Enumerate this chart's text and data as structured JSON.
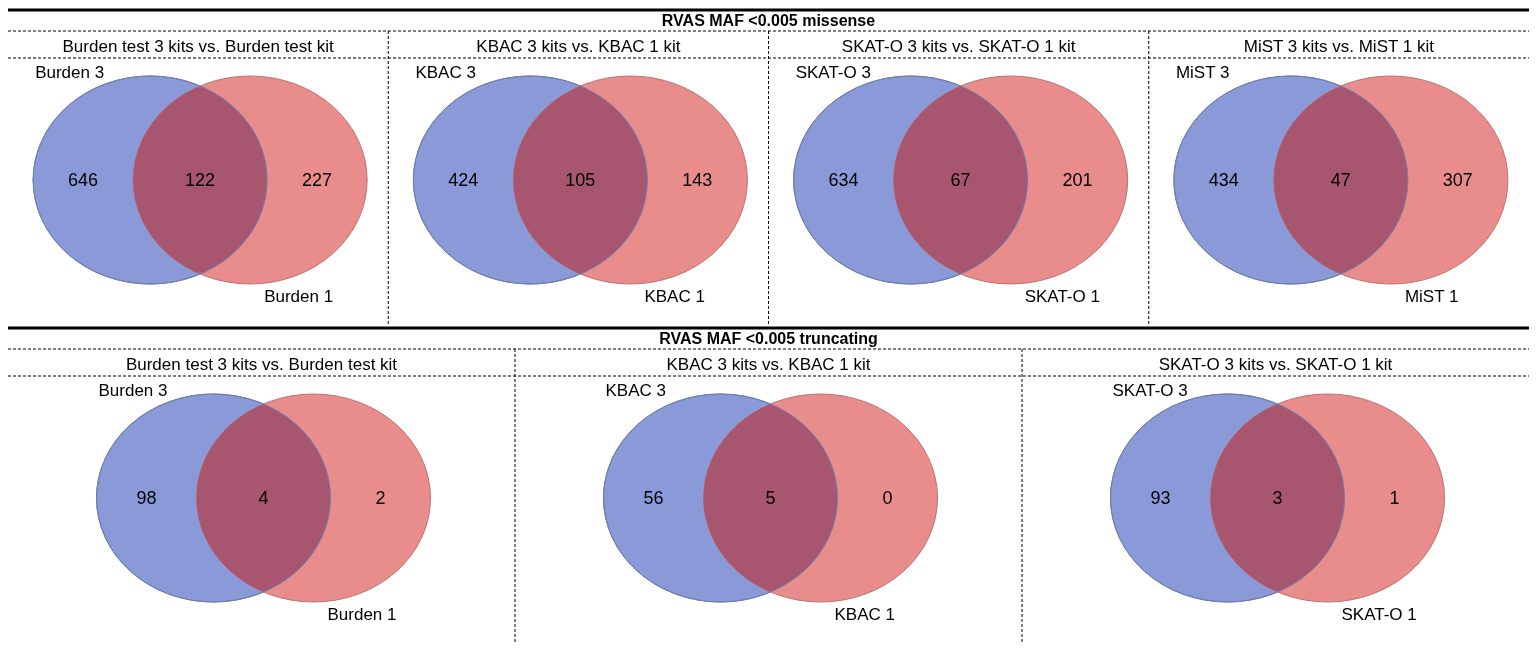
{
  "chart_data": [
    {
      "type": "other",
      "title": "RVAS MAF <0.005 missense"
    },
    {
      "type": "other",
      "title": "Burden test 3 kits vs. Burden test kit",
      "categories": [
        "Burden 3",
        null,
        "Burden 1"
      ],
      "values": [
        646,
        122,
        227
      ],
      "data_labels": true,
      "colors": [
        "#8a9ad8",
        "#a85670",
        "#e88c8c"
      ]
    },
    {
      "type": "other",
      "title": "KBAC 3 kits vs. KBAC 1 kit",
      "categories": [
        "KBAC 3",
        null,
        "KBAC 1"
      ],
      "values": [
        424,
        105,
        143
      ],
      "data_labels": true,
      "colors": [
        "#8a9ad8",
        "#a85670",
        "#e88c8c"
      ]
    },
    {
      "type": "other",
      "title": "SKAT-O 3 kits vs. SKAT-O 1 kit",
      "categories": [
        "SKAT-O 3",
        null,
        "SKAT-O 1"
      ],
      "values": [
        634,
        67,
        201
      ],
      "data_labels": true,
      "colors": [
        "#8a9ad8",
        "#a85670",
        "#e88c8c"
      ]
    },
    {
      "type": "other",
      "title": "MiST 3 kits vs. MiST 1 kit",
      "categories": [
        "MiST 3",
        null,
        "MiST 1"
      ],
      "values": [
        434,
        47,
        307
      ],
      "data_labels": true,
      "colors": [
        "#8a9ad8",
        "#a85670",
        "#e88c8c"
      ]
    },
    {
      "type": "other",
      "title": "RVAS MAF <0.005 truncating"
    },
    {
      "type": "other",
      "title": "Burden test 3 kits vs. Burden test kit",
      "categories": [
        "Burden 3",
        null,
        "Burden 1"
      ],
      "values": [
        98,
        4,
        2
      ],
      "data_labels": true,
      "colors": [
        "#8a9ad8",
        "#a85670",
        "#e88c8c"
      ]
    },
    {
      "type": "other",
      "title": "KBAC 3 kits vs. KBAC 1 kit",
      "categories": [
        "KBAC 3",
        null,
        "KBAC 1"
      ],
      "values": [
        56,
        5,
        0
      ],
      "data_labels": true,
      "colors": [
        "#8a9ad8",
        "#a85670",
        "#e88c8c"
      ]
    },
    {
      "type": "other",
      "title": "SKAT-O 3 kits vs. SKAT-O 1 kit",
      "categories": [
        "SKAT-O 3",
        null,
        "SKAT-O 1"
      ],
      "values": [
        93,
        3,
        1
      ],
      "data_labels": true,
      "colors": [
        "#8a9ad8",
        "#a85670",
        "#e88c8c"
      ]
    }
  ]
}
